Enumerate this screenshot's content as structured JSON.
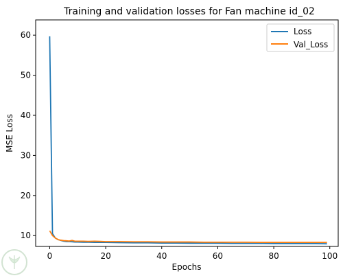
{
  "chart_data": {
    "type": "line",
    "title": "Training and validation losses for Fan machine id_02",
    "xlabel": "Epochs",
    "ylabel": "MSE Loss",
    "xlim": [
      -5,
      103
    ],
    "ylim": [
      7.3,
      63.8
    ],
    "xticks": [
      0,
      20,
      40,
      60,
      80,
      100
    ],
    "yticks": [
      10,
      20,
      30,
      40,
      50,
      60
    ],
    "grid": false,
    "legend_position": "upper-right",
    "series": [
      {
        "name": "Loss",
        "color": "#1f77b4",
        "x": [
          0,
          1,
          2,
          3,
          4,
          5,
          6,
          7,
          8,
          9,
          10,
          12,
          14,
          16,
          18,
          20,
          25,
          30,
          35,
          40,
          45,
          50,
          55,
          60,
          65,
          70,
          75,
          80,
          85,
          90,
          95,
          99
        ],
        "y": [
          59.7,
          10.5,
          9.4,
          9.0,
          8.8,
          8.6,
          8.5,
          8.5,
          8.45,
          8.4,
          8.4,
          8.35,
          8.35,
          8.3,
          8.3,
          8.3,
          8.25,
          8.2,
          8.2,
          8.15,
          8.15,
          8.1,
          8.1,
          8.1,
          8.05,
          8.05,
          8.05,
          8.0,
          8.0,
          8.0,
          8.0,
          7.95
        ]
      },
      {
        "name": "Val_Loss",
        "color": "#ff7f0e",
        "x": [
          0,
          1,
          2,
          3,
          4,
          5,
          6,
          7,
          8,
          9,
          10,
          12,
          14,
          16,
          18,
          20,
          25,
          30,
          35,
          40,
          45,
          50,
          55,
          60,
          65,
          70,
          75,
          80,
          85,
          90,
          95,
          99
        ],
        "y": [
          11.2,
          10.0,
          9.4,
          9.0,
          8.85,
          8.75,
          8.7,
          8.65,
          8.8,
          8.6,
          8.6,
          8.6,
          8.55,
          8.6,
          8.55,
          8.5,
          8.5,
          8.45,
          8.45,
          8.4,
          8.4,
          8.4,
          8.35,
          8.35,
          8.35,
          8.35,
          8.3,
          8.3,
          8.3,
          8.3,
          8.3,
          8.3
        ]
      }
    ]
  },
  "watermark": "logo"
}
